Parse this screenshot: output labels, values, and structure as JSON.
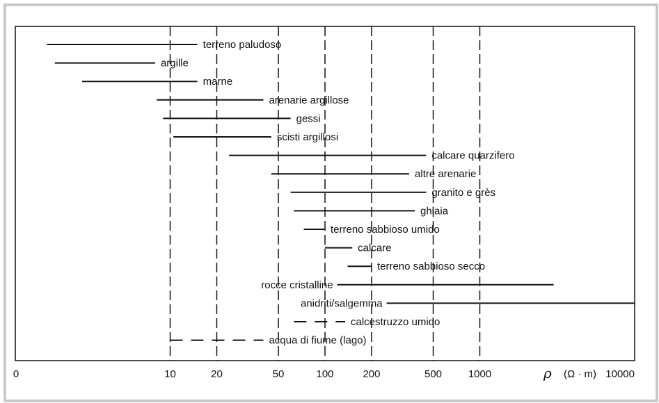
{
  "chart_data": {
    "type": "range",
    "xscale": "log",
    "xlim": [
      1,
      10000
    ],
    "xticks": [
      {
        "value": 1,
        "label": "0"
      },
      {
        "value": 10,
        "label": "10"
      },
      {
        "value": 20,
        "label": "20"
      },
      {
        "value": 50,
        "label": "50"
      },
      {
        "value": 100,
        "label": "100"
      },
      {
        "value": 200,
        "label": "200"
      },
      {
        "value": 500,
        "label": "500"
      },
      {
        "value": 1000,
        "label": "1000"
      },
      {
        "value": 10000,
        "label": "10000"
      }
    ],
    "gridlines_dashed": [
      10,
      20,
      50,
      100,
      200,
      500,
      1000
    ],
    "xlabel_symbol": "ρ",
    "xlabel_unit": "(Ω · m)",
    "colors": {
      "line": "#111111",
      "frame": "#c9c9c9"
    },
    "series": [
      {
        "name": "terreno paludoso",
        "min": 1.6,
        "max": 15,
        "style": "solid",
        "label_side": "right"
      },
      {
        "name": "argille",
        "min": 1.8,
        "max": 8,
        "style": "solid",
        "label_side": "right"
      },
      {
        "name": "marne",
        "min": 2.7,
        "max": 15,
        "style": "solid",
        "label_side": "right"
      },
      {
        "name": "arenarie argillose",
        "min": 8.2,
        "max": 40,
        "style": "solid",
        "label_side": "right"
      },
      {
        "name": "gessi",
        "min": 9,
        "max": 60,
        "style": "solid",
        "label_side": "right"
      },
      {
        "name": "scisti argillosi",
        "min": 10.5,
        "max": 45,
        "style": "solid",
        "label_side": "right"
      },
      {
        "name": "calcare quarzifero",
        "min": 24,
        "max": 450,
        "style": "solid",
        "label_side": "right"
      },
      {
        "name": "altre arenarie",
        "min": 45,
        "max": 350,
        "style": "solid",
        "label_side": "right"
      },
      {
        "name": "granito e grès",
        "min": 60,
        "max": 450,
        "style": "solid",
        "label_side": "right"
      },
      {
        "name": "ghiaia",
        "min": 63,
        "max": 380,
        "style": "solid",
        "label_side": "right"
      },
      {
        "name": "terreno sabbioso umido",
        "min": 73,
        "max": 100,
        "style": "solid",
        "label_side": "right"
      },
      {
        "name": "calcare",
        "min": 100,
        "max": 150,
        "style": "solid",
        "label_side": "right"
      },
      {
        "name": "terreno sabbioso secco",
        "min": 140,
        "max": 200,
        "style": "solid",
        "label_side": "right"
      },
      {
        "name": "rocce cristalline",
        "min": 120,
        "max": 3000,
        "style": "solid",
        "label_side": "left"
      },
      {
        "name": "anidriti/salgemma",
        "min": 250,
        "max": 10000,
        "style": "solid",
        "label_side": "left"
      },
      {
        "name": "calcestruzzo umido",
        "min": 63,
        "max": 135,
        "style": "dashed",
        "label_side": "right"
      },
      {
        "name": "acqua di fiume (lago)",
        "min": 10,
        "max": 40,
        "style": "dashed",
        "label_side": "right"
      }
    ]
  }
}
